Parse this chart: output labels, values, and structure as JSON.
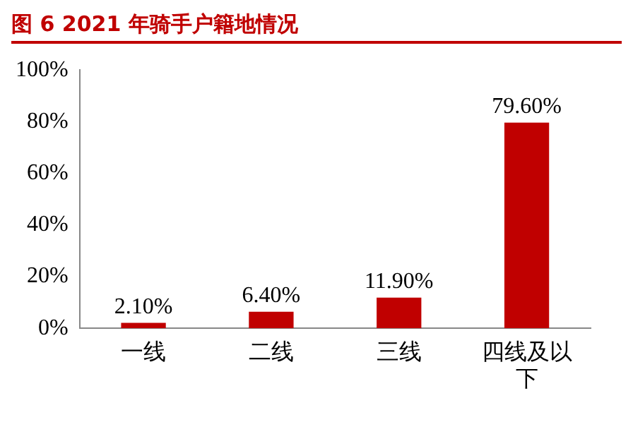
{
  "chart_data": {
    "type": "bar",
    "title": "图 6 2021 年骑手户籍地情况",
    "categories": [
      "一线",
      "二线",
      "三线",
      "四线及以下"
    ],
    "values": [
      2.1,
      6.4,
      11.9,
      79.6
    ],
    "color": "#c00000",
    "value_labels": [
      "2.10%",
      "6.40%",
      "11.90%",
      "79.60%"
    ],
    "ylim": [
      0,
      100
    ],
    "yticks": [
      {
        "value": 0,
        "label": "0%"
      },
      {
        "value": 20,
        "label": "20%"
      },
      {
        "value": 40,
        "label": "40%"
      },
      {
        "value": 60,
        "label": "60%"
      },
      {
        "value": 80,
        "label": "80%"
      },
      {
        "value": 100,
        "label": "100%"
      }
    ],
    "grid": false,
    "legend": false
  }
}
